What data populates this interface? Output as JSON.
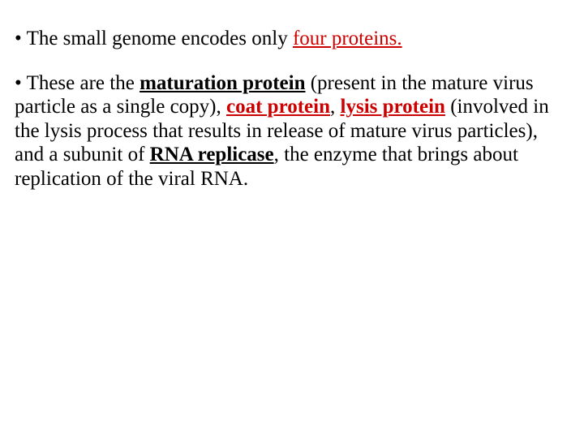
{
  "slide": {
    "background_color": "#ffffff",
    "text_color": "#000000",
    "accent_color": "#cc0000",
    "font_family": "Times New Roman",
    "font_size_pt": 25,
    "line_height": 1.18,
    "bullets": [
      {
        "marker": "•",
        "runs": [
          {
            "text": " The small genome encodes only "
          },
          {
            "text": "four proteins.",
            "red": true,
            "underline": true
          }
        ]
      },
      {
        "marker": "•",
        "runs": [
          {
            "text": " These are the "
          },
          {
            "text": "maturation protein",
            "bold": true,
            "underline": true
          },
          {
            "text": " (present in the mature virus particle as a single copy), "
          },
          {
            "text": "coat protein",
            "bold": true,
            "underline": true,
            "red": true
          },
          {
            "text": ", "
          },
          {
            "text": "lysis protein",
            "bold": true,
            "underline": true,
            "red": true
          },
          {
            "text": " (involved in the lysis process that results in release of mature virus particles), and a subunit of "
          },
          {
            "text": "RNA replicase",
            "bold": true,
            "underline": true
          },
          {
            "text": ", the enzyme that brings about replication of the viral RNA."
          }
        ]
      }
    ]
  }
}
